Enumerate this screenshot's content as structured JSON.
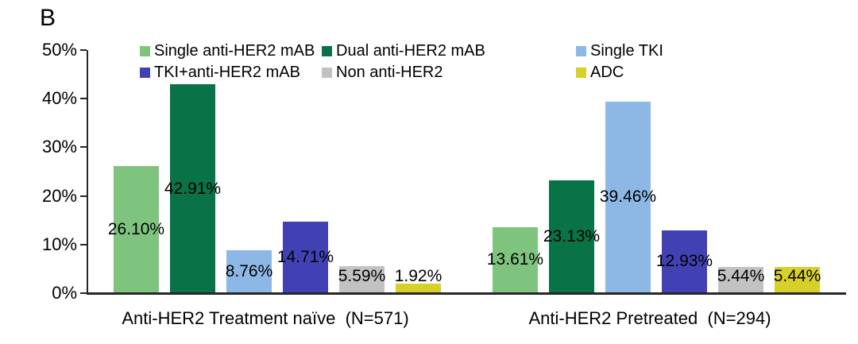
{
  "panel_label": "B",
  "chart_data": {
    "type": "bar",
    "title": "",
    "xlabel": "",
    "ylabel": "",
    "ylim": [
      0,
      50
    ],
    "yticks": [
      0,
      10,
      20,
      30,
      40,
      50
    ],
    "ytick_labels": [
      "0%",
      "10%",
      "20%",
      "30%",
      "40%",
      "50%"
    ],
    "grid": false,
    "legend_position": "top",
    "axis_color": "#262626",
    "categories": [
      "Anti-HER2 Treatment naïve  (N=571)",
      "Anti-HER2 Pretreated  (N=294)"
    ],
    "series": [
      {
        "name": "Single anti-HER2 mAB",
        "color": "#7EC47F",
        "values": [
          26.1,
          13.61
        ],
        "labels": [
          "26.10%",
          "13.61%"
        ]
      },
      {
        "name": "Dual anti-HER2 mAB",
        "color": "#097247",
        "values": [
          42.91,
          23.13
        ],
        "labels": [
          "42.91%",
          "23.13%"
        ]
      },
      {
        "name": "Single TKI",
        "color": "#8DB8E6",
        "values": [
          8.76,
          39.46
        ],
        "labels": [
          "8.76%",
          "39.46%"
        ]
      },
      {
        "name": "TKI+anti-HER2 mAB",
        "color": "#4141B3",
        "values": [
          14.71,
          12.93
        ],
        "labels": [
          "14.71%",
          "12.93%"
        ]
      },
      {
        "name": "Non anti-HER2",
        "color": "#C2C2C2",
        "values": [
          5.59,
          5.44
        ],
        "labels": [
          "5.59%",
          "5.44%"
        ]
      },
      {
        "name": "ADC",
        "color": "#D7D02B",
        "values": [
          1.92,
          5.44
        ],
        "labels": [
          "1.92%",
          "5.44%"
        ]
      }
    ]
  }
}
